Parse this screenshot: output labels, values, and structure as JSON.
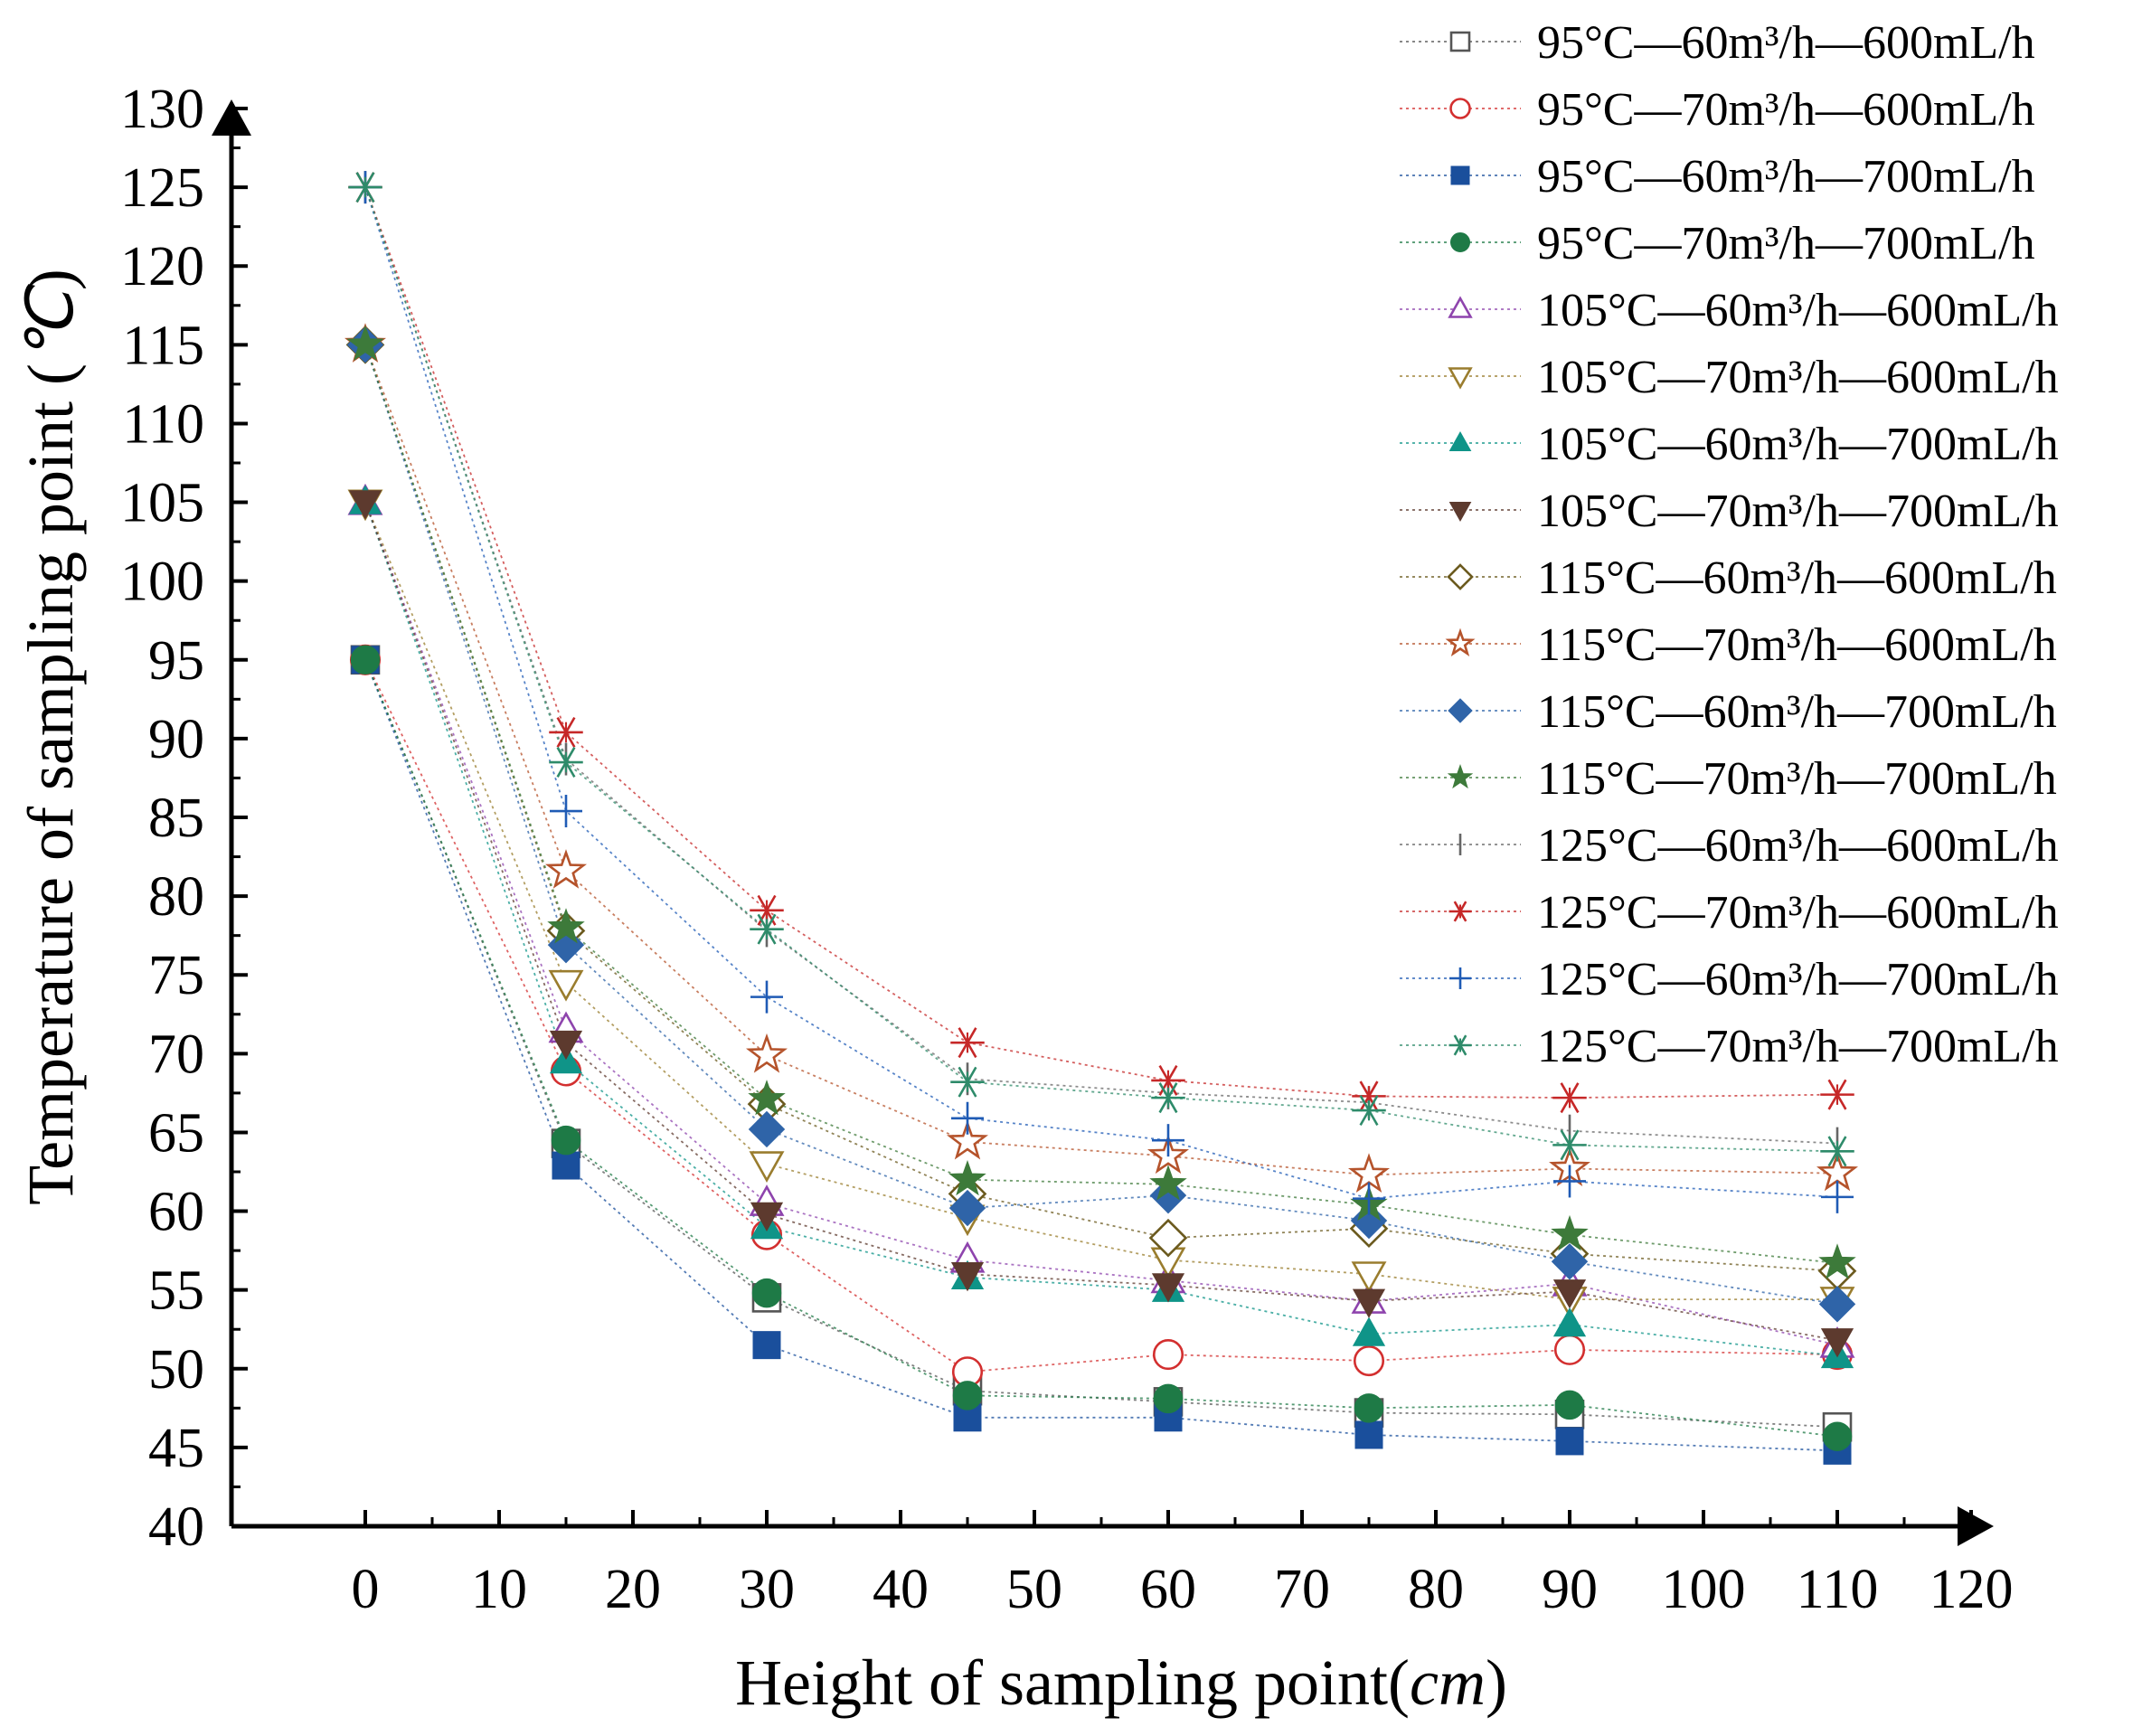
{
  "chart_data": {
    "type": "scatter",
    "xlabel_text": "Height of sampling point(",
    "xlabel_unit": "cm",
    "xlabel_close": ")",
    "ylabel_text": "Temperature of sampling point (",
    "ylabel_unit": "℃",
    "ylabel_close": ")",
    "xlim": [
      -10,
      120
    ],
    "ylim": [
      40,
      130
    ],
    "xticks": [
      0,
      10,
      20,
      30,
      40,
      50,
      60,
      70,
      80,
      90,
      100,
      110,
      120
    ],
    "yticks": [
      40,
      45,
      50,
      55,
      60,
      65,
      70,
      75,
      80,
      85,
      90,
      95,
      100,
      105,
      110,
      115,
      120,
      125,
      130
    ],
    "x": [
      0,
      15,
      30,
      45,
      60,
      75,
      90,
      110
    ],
    "series": [
      {
        "name": "95°C—60m³/h—600mL/h",
        "marker": "square-open",
        "color": "#555555",
        "values": [
          95,
          64.3,
          54.5,
          48.6,
          47.9,
          47.2,
          47.1,
          46.3
        ]
      },
      {
        "name": "95°C—70m³/h—600mL/h",
        "marker": "circle-open",
        "color": "#d32f2f",
        "values": [
          95,
          68.9,
          58.5,
          49.8,
          50.9,
          50.5,
          51.2,
          50.9
        ]
      },
      {
        "name": "95°C—60m³/h—700mL/h",
        "marker": "square",
        "color": "#1a4f9c",
        "values": [
          95,
          62.9,
          51.5,
          46.9,
          46.9,
          45.8,
          45.4,
          44.8
        ]
      },
      {
        "name": "95°C—70m³/h—700mL/h",
        "marker": "circle",
        "color": "#1e7a46",
        "values": [
          95,
          64.5,
          54.8,
          48.3,
          48.1,
          47.5,
          47.7,
          45.7
        ]
      },
      {
        "name": "105°C—60m³/h—600mL/h",
        "marker": "triangle-open",
        "color": "#8e44ad",
        "values": [
          105,
          71.5,
          60.5,
          56.9,
          55.6,
          54.3,
          55.4,
          51.5
        ]
      },
      {
        "name": "105°C—70m³/h—600mL/h",
        "marker": "tri-down-open",
        "color": "#9a7d2e",
        "values": [
          105,
          74.5,
          63.0,
          59.6,
          56.9,
          56.0,
          54.4,
          54.4
        ]
      },
      {
        "name": "105°C—60m³/h—700mL/h",
        "marker": "triangle",
        "color": "#0f9488",
        "values": [
          105,
          69.5,
          59.0,
          55.8,
          55.0,
          52.2,
          52.8,
          50.8
        ]
      },
      {
        "name": "105°C—70m³/h—700mL/h",
        "marker": "tri-down",
        "color": "#5d3a2e",
        "values": [
          105,
          70.7,
          59.8,
          56.0,
          55.3,
          54.3,
          54.9,
          51.8
        ]
      },
      {
        "name": "115°C—60m³/h—600mL/h",
        "marker": "diamond-open",
        "color": "#6b5a1e",
        "values": [
          115,
          77.8,
          66.8,
          61.1,
          58.3,
          58.9,
          57.3,
          56.2
        ]
      },
      {
        "name": "115°C—70m³/h—600mL/h",
        "marker": "star-open",
        "color": "#b5532b",
        "values": [
          115,
          81.6,
          69.9,
          64.4,
          63.5,
          62.3,
          62.7,
          62.4
        ]
      },
      {
        "name": "115°C—60m³/h—700mL/h",
        "marker": "diamond",
        "color": "#2f64a8",
        "values": [
          115,
          76.9,
          65.2,
          60.2,
          61.0,
          59.4,
          56.8,
          54.1
        ]
      },
      {
        "name": "115°C—70m³/h—700mL/h",
        "marker": "star",
        "color": "#3d7a3a",
        "values": [
          115,
          78.0,
          67.1,
          62.0,
          61.7,
          60.4,
          58.5,
          56.7
        ]
      },
      {
        "name": "125°C—60m³/h—600mL/h",
        "marker": "vbar",
        "color": "#666666",
        "values": [
          125,
          88.7,
          77.8,
          68.4,
          67.5,
          66.9,
          65.1,
          64.3
        ]
      },
      {
        "name": "125°C—70m³/h—600mL/h",
        "marker": "asterisk",
        "color": "#c62828",
        "values": [
          125,
          90.4,
          79.1,
          70.7,
          68.3,
          67.3,
          67.2,
          67.4
        ]
      },
      {
        "name": "125°C—60m³/h—700mL/h",
        "marker": "plus",
        "color": "#1f5bb5",
        "values": [
          125,
          85.4,
          73.6,
          65.9,
          64.5,
          60.8,
          61.9,
          60.9
        ]
      },
      {
        "name": "125°C—70m³/h—700mL/h",
        "marker": "asterisk",
        "color": "#2e8b6a",
        "values": [
          125,
          88.5,
          77.9,
          68.2,
          67.2,
          66.4,
          64.2,
          63.8
        ]
      }
    ]
  }
}
